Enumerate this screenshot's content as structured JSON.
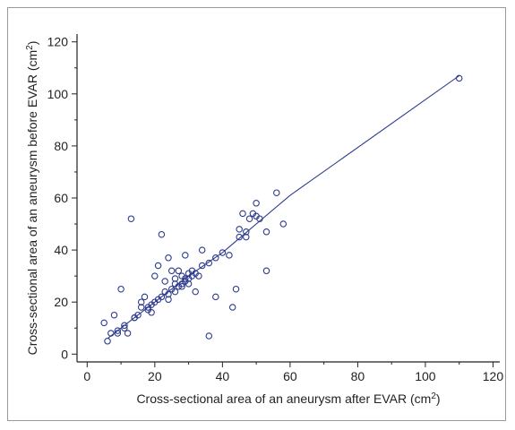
{
  "chart_data": {
    "type": "scatter",
    "xlabel": "Cross-sectional area of an aneurysm after EVAR (cm²)",
    "ylabel": "Cross-sectional area of an aneurysm before EVAR (cm²)",
    "xlim": [
      -3,
      122
    ],
    "ylim": [
      -3,
      123
    ],
    "xticks": [
      0,
      20,
      40,
      60,
      80,
      100,
      120
    ],
    "yticks": [
      0,
      20,
      40,
      60,
      80,
      100,
      120
    ],
    "grid": false,
    "colors": {
      "marker": "#2e3b8c",
      "line": "#2e3b8c",
      "axis": "#222222"
    },
    "fit_line": [
      [
        6,
        6
      ],
      [
        10,
        10
      ],
      [
        20,
        20
      ],
      [
        30,
        30
      ],
      [
        40,
        39
      ],
      [
        50,
        50
      ],
      [
        60,
        61
      ],
      [
        110,
        107
      ]
    ],
    "points": [
      [
        6,
        5
      ],
      [
        7,
        8
      ],
      [
        8,
        15
      ],
      [
        9,
        8
      ],
      [
        10,
        25
      ],
      [
        11,
        10
      ],
      [
        12,
        8
      ],
      [
        13,
        52
      ],
      [
        14,
        14
      ],
      [
        15,
        15
      ],
      [
        16,
        18
      ],
      [
        16,
        20
      ],
      [
        17,
        22
      ],
      [
        18,
        18
      ],
      [
        18,
        17
      ],
      [
        19,
        16
      ],
      [
        20,
        20
      ],
      [
        20,
        30
      ],
      [
        21,
        34
      ],
      [
        22,
        22
      ],
      [
        22,
        46
      ],
      [
        23,
        24
      ],
      [
        23,
        28
      ],
      [
        24,
        37
      ],
      [
        24,
        21
      ],
      [
        25,
        25
      ],
      [
        25,
        32
      ],
      [
        26,
        24
      ],
      [
        26,
        29
      ],
      [
        27,
        26
      ],
      [
        27,
        32
      ],
      [
        28,
        27
      ],
      [
        28,
        30
      ],
      [
        29,
        38
      ],
      [
        29,
        28
      ],
      [
        30,
        29
      ],
      [
        30,
        31
      ],
      [
        31,
        30
      ],
      [
        31,
        32
      ],
      [
        32,
        31
      ],
      [
        32,
        24
      ],
      [
        34,
        34
      ],
      [
        34,
        40
      ],
      [
        36,
        35
      ],
      [
        36,
        7
      ],
      [
        38,
        37
      ],
      [
        38,
        22
      ],
      [
        40,
        39
      ],
      [
        42,
        38
      ],
      [
        43,
        18
      ],
      [
        44,
        25
      ],
      [
        45,
        45
      ],
      [
        45,
        48
      ],
      [
        46,
        54
      ],
      [
        47,
        45
      ],
      [
        47,
        47
      ],
      [
        48,
        52
      ],
      [
        49,
        54
      ],
      [
        50,
        53
      ],
      [
        50,
        58
      ],
      [
        51,
        52
      ],
      [
        53,
        47
      ],
      [
        53,
        32
      ],
      [
        56,
        62
      ],
      [
        58,
        50
      ],
      [
        110,
        106
      ],
      [
        5,
        12
      ],
      [
        9,
        9
      ],
      [
        11,
        11
      ],
      [
        14,
        14
      ],
      [
        19,
        19
      ],
      [
        21,
        21
      ],
      [
        24,
        23
      ],
      [
        26,
        27
      ],
      [
        28,
        26
      ],
      [
        29,
        29
      ],
      [
        30,
        27
      ],
      [
        33,
        30
      ]
    ]
  }
}
